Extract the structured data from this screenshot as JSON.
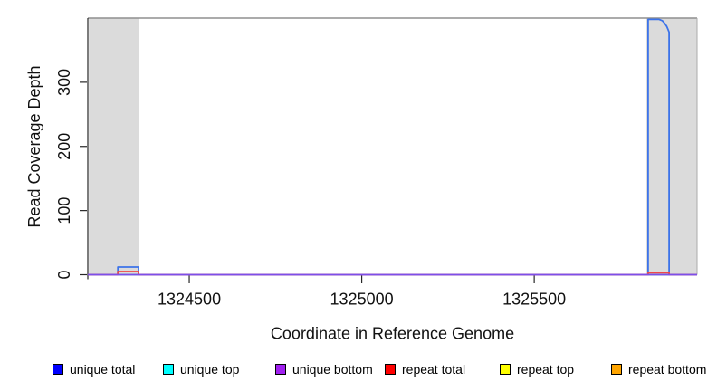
{
  "figure": {
    "xlabel": "Coordinate in Reference Genome",
    "ylabel": "Read Coverage Depth"
  },
  "colors": {
    "shaded_region": "#DBDBDB",
    "frame_top": "#8F8F8F",
    "frame_right": "#ABABAB",
    "axis": "#262626"
  },
  "chart_data": {
    "type": "line",
    "title": "",
    "xlabel": "Coordinate in Reference Genome",
    "ylabel": "Read Coverage Depth",
    "xlim": [
      1324206,
      1325972
    ],
    "ylim": [
      0,
      400
    ],
    "x_ticks": [
      1324500,
      1325000,
      1325500
    ],
    "y_ticks": [
      0,
      100,
      200,
      300
    ],
    "grid": false,
    "legend_position": "bottom",
    "shaded_regions": [
      {
        "x1": 1324209,
        "x2": 1324353,
        "color": "#DBDBDB"
      },
      {
        "x1": 1325825,
        "x2": 1325972,
        "color": "#DBDBDB"
      }
    ],
    "series": [
      {
        "name": "repeat top",
        "line_color": "#E8E800",
        "points": [
          [
            1324206,
            0
          ],
          [
            1325972,
            0
          ]
        ]
      },
      {
        "name": "repeat bottom",
        "line_color": "#F0A030",
        "points": [
          [
            1324206,
            0
          ],
          [
            1325972,
            0
          ]
        ]
      },
      {
        "name": "unique top",
        "line_color": "#30D8D8",
        "points": [
          [
            1324206,
            0
          ],
          [
            1325972,
            0
          ]
        ]
      },
      {
        "name": "unique total",
        "line_color": "#3C73E9",
        "points": [
          [
            1324206,
            0
          ],
          [
            1324293,
            0
          ],
          [
            1324293,
            12
          ],
          [
            1324353,
            12
          ],
          [
            1324353,
            0
          ],
          [
            1325830,
            0
          ],
          [
            1325830,
            398
          ],
          [
            1325862,
            398
          ],
          [
            1325871,
            396
          ],
          [
            1325878,
            392
          ],
          [
            1325884,
            387
          ],
          [
            1325888,
            382
          ],
          [
            1325891,
            378
          ],
          [
            1325891,
            0
          ],
          [
            1325972,
            0
          ]
        ]
      },
      {
        "name": "repeat total",
        "line_color": "#F04848",
        "points": [
          [
            1324206,
            0
          ],
          [
            1324293,
            0
          ],
          [
            1324293,
            5
          ],
          [
            1324353,
            5
          ],
          [
            1324353,
            0
          ],
          [
            1325830,
            0
          ],
          [
            1325830,
            3
          ],
          [
            1325891,
            3
          ],
          [
            1325891,
            0
          ],
          [
            1325972,
            0
          ]
        ]
      },
      {
        "name": "unique bottom",
        "line_color": "#7C4FEA",
        "points": [
          [
            1324206,
            0
          ],
          [
            1325972,
            0
          ]
        ]
      }
    ],
    "legend": [
      {
        "label": "unique total",
        "color": "#0000FF"
      },
      {
        "label": "unique top",
        "color": "#00FFFF"
      },
      {
        "label": "unique bottom",
        "color": "#A020F0"
      },
      {
        "label": "repeat total",
        "color": "#FF0000"
      },
      {
        "label": "repeat top",
        "color": "#FFFF00"
      },
      {
        "label": "repeat bottom",
        "color": "#FFA500"
      }
    ]
  }
}
